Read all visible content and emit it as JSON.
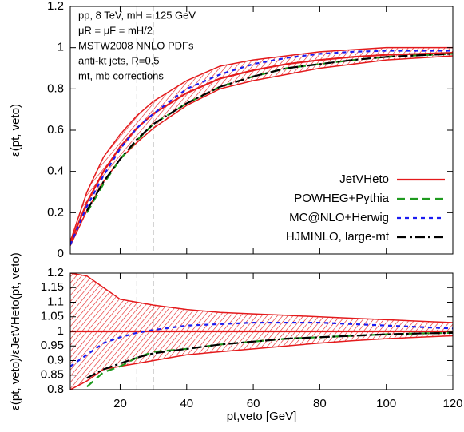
{
  "chart_data": [
    {
      "type": "line",
      "ylabel": "ε(pt, veto)",
      "annotations": [
        "pp, 8 TeV, mH = 125 GeV",
        "μR = μF = mH/2",
        "MSTW2008 NNLO PDFs",
        "anti-kt jets, R=0.5",
        "mt, mb corrections"
      ],
      "x": [
        5,
        10,
        15,
        20,
        25,
        30,
        40,
        50,
        60,
        70,
        80,
        90,
        100,
        110,
        120
      ],
      "xlim": [
        5,
        120
      ],
      "xticks": [
        20,
        40,
        60,
        80,
        100,
        120
      ],
      "ylim": [
        0,
        1.2
      ],
      "yticks": [
        0,
        0.2,
        0.4,
        0.6,
        0.8,
        1,
        1.2
      ],
      "vlines": [
        25,
        30
      ],
      "legend": "right",
      "band": {
        "color": "#e41a1c",
        "high": [
          0.06,
          0.3,
          0.47,
          0.58,
          0.67,
          0.74,
          0.84,
          0.91,
          0.94,
          0.96,
          0.98,
          0.99,
          1.0,
          1.0,
          1.0
        ],
        "low": [
          0.04,
          0.21,
          0.35,
          0.46,
          0.54,
          0.61,
          0.72,
          0.8,
          0.84,
          0.87,
          0.9,
          0.92,
          0.94,
          0.95,
          0.96
        ]
      },
      "series": [
        {
          "name": "JetVHeto",
          "color": "#e41a1c",
          "dash": "none",
          "values": [
            0.05,
            0.25,
            0.4,
            0.52,
            0.61,
            0.68,
            0.78,
            0.85,
            0.89,
            0.92,
            0.94,
            0.955,
            0.965,
            0.97,
            0.975
          ]
        },
        {
          "name": "POWHEG+Pythia",
          "color": "#1e9a1e",
          "dash": "10,6",
          "values": [
            null,
            0.2,
            0.34,
            0.46,
            0.55,
            0.63,
            0.73,
            0.81,
            0.86,
            0.9,
            0.92,
            0.94,
            0.955,
            0.963,
            0.97
          ]
        },
        {
          "name": "MC@NLO+Herwig",
          "color": "#1c1cf0",
          "dash": "5,5",
          "values": [
            0.044,
            0.23,
            0.38,
            0.51,
            0.61,
            0.68,
            0.8,
            0.87,
            0.92,
            0.95,
            0.97,
            0.98,
            0.985,
            0.985,
            0.985
          ]
        },
        {
          "name": "HJMINLO, large-mt",
          "color": "#000000",
          "dash": "12,4,3,4",
          "values": [
            null,
            0.21,
            0.35,
            0.46,
            0.555,
            0.63,
            0.73,
            0.81,
            0.86,
            0.9,
            0.92,
            0.94,
            0.955,
            0.963,
            0.97
          ]
        }
      ]
    },
    {
      "type": "line",
      "ylabel": "ε(pt, veto)/εJetVHeto(pt, veto)",
      "xlabel": "pt,veto [GeV]",
      "x": [
        5,
        10,
        15,
        20,
        25,
        30,
        40,
        50,
        60,
        70,
        80,
        90,
        100,
        110,
        120
      ],
      "xlim": [
        5,
        120
      ],
      "xticks": [
        20,
        40,
        60,
        80,
        100,
        120
      ],
      "ylim": [
        0.8,
        1.2
      ],
      "yticks": [
        0.8,
        0.85,
        0.9,
        0.95,
        1,
        1.05,
        1.1,
        1.15,
        1.2
      ],
      "vlines": [
        25,
        30
      ],
      "band": {
        "color": "#e41a1c",
        "high": [
          1.2,
          1.19,
          1.15,
          1.11,
          1.1,
          1.09,
          1.075,
          1.065,
          1.06,
          1.055,
          1.05,
          1.045,
          1.04,
          1.035,
          1.03
        ],
        "low": [
          0.8,
          0.83,
          0.87,
          0.88,
          0.89,
          0.9,
          0.92,
          0.93,
          0.94,
          0.95,
          0.96,
          0.968,
          0.975,
          0.98,
          0.985
        ]
      },
      "series": [
        {
          "color": "#e41a1c",
          "dash": "none",
          "values": [
            1,
            1,
            1,
            1,
            1,
            1,
            1,
            1,
            1,
            1,
            1,
            1,
            1,
            1,
            1
          ]
        },
        {
          "color": "#1e9a1e",
          "dash": "10,6",
          "values": [
            null,
            0.81,
            0.86,
            0.88,
            0.91,
            0.93,
            0.94,
            0.955,
            0.965,
            0.975,
            0.98,
            0.985,
            0.99,
            0.993,
            0.995
          ]
        },
        {
          "color": "#1c1cf0",
          "dash": "5,5",
          "values": [
            0.88,
            0.92,
            0.96,
            0.98,
            0.995,
            1.005,
            1.02,
            1.025,
            1.03,
            1.03,
            1.03,
            1.025,
            1.02,
            1.015,
            1.01
          ]
        },
        {
          "color": "#000000",
          "dash": "12,4,3,4",
          "values": [
            null,
            0.84,
            0.87,
            0.89,
            0.91,
            0.925,
            0.94,
            0.955,
            0.965,
            0.975,
            0.98,
            0.985,
            0.99,
            0.993,
            0.995
          ]
        }
      ]
    }
  ]
}
